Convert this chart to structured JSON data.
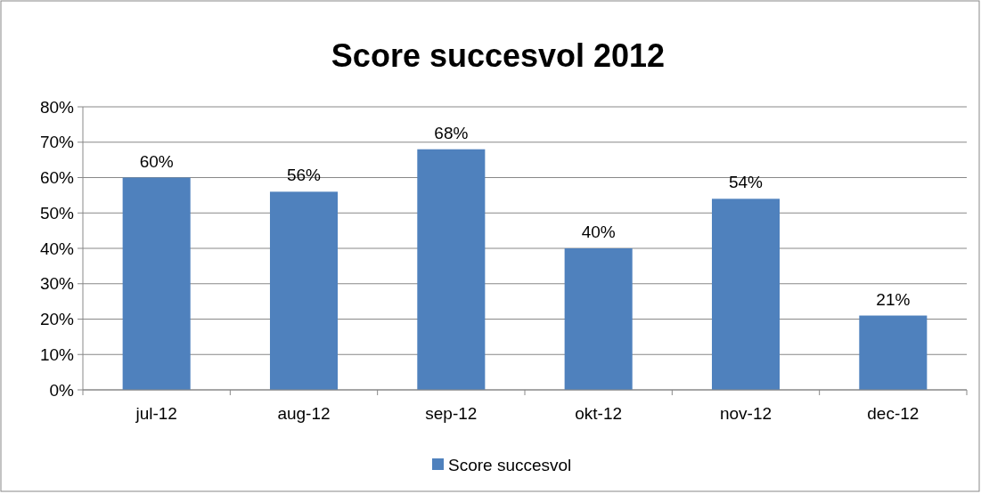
{
  "chart_data": {
    "type": "bar",
    "title": "Score succesvol 2012",
    "categories": [
      "jul-12",
      "aug-12",
      "sep-12",
      "okt-12",
      "nov-12",
      "dec-12"
    ],
    "series": [
      {
        "name": "Score succesvol",
        "color": "#4f81bd",
        "values": [
          60,
          56,
          68,
          40,
          54,
          21
        ],
        "value_labels": [
          "60%",
          "56%",
          "68%",
          "40%",
          "54%",
          "21%"
        ]
      }
    ],
    "ylim": [
      0,
      80
    ],
    "yticks": [
      {
        "value": 0,
        "label": "0%"
      },
      {
        "value": 10,
        "label": "10%"
      },
      {
        "value": 20,
        "label": "20%"
      },
      {
        "value": 30,
        "label": "30%"
      },
      {
        "value": 40,
        "label": "40%"
      },
      {
        "value": 50,
        "label": "50%"
      },
      {
        "value": 60,
        "label": "60%"
      },
      {
        "value": 70,
        "label": "70%"
      },
      {
        "value": 80,
        "label": "80%"
      }
    ],
    "grid": "y",
    "legend": "bottom"
  }
}
